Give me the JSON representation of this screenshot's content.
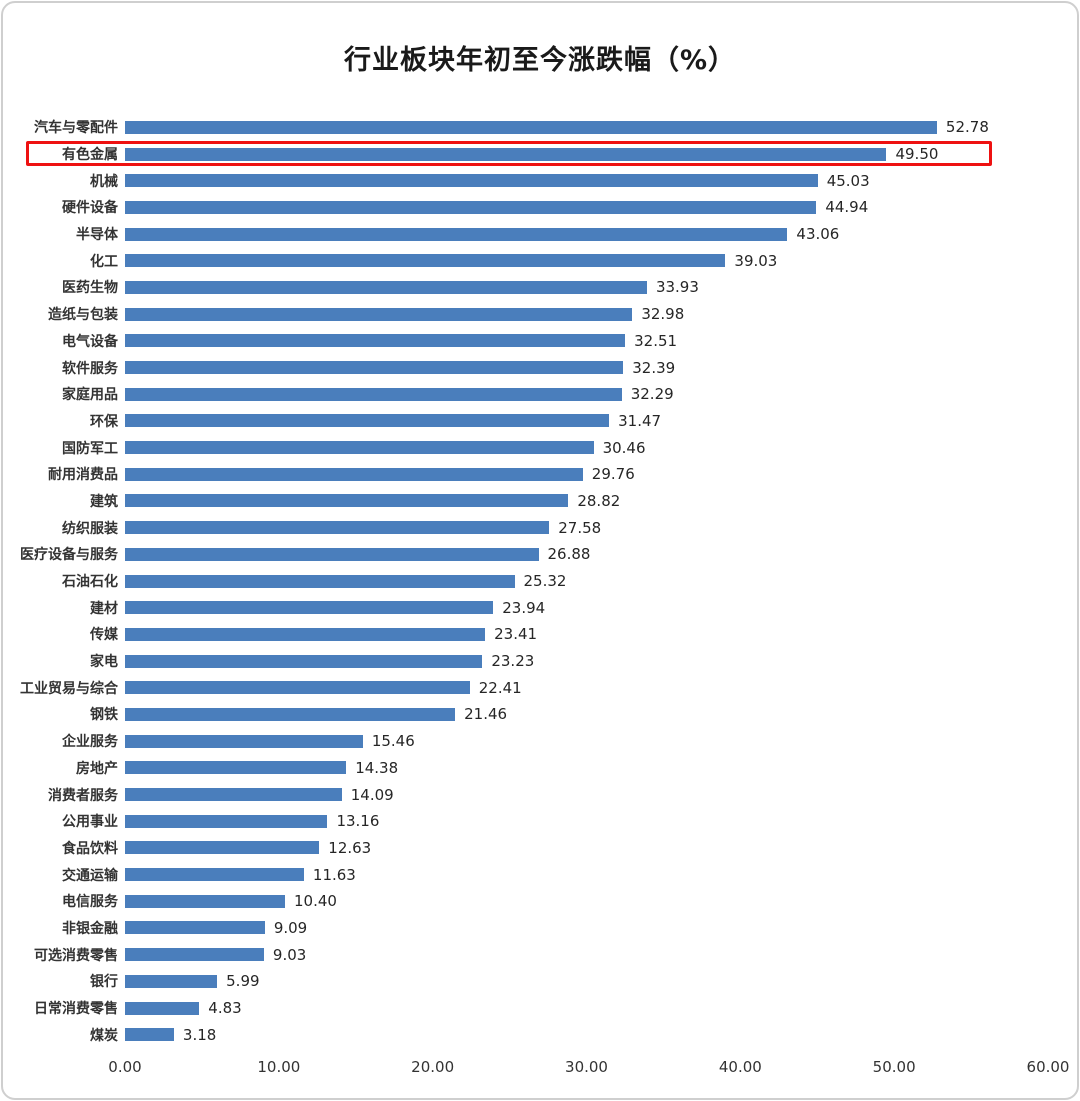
{
  "title": "行业板块年初至今涨跌幅（%）",
  "chart_data": {
    "type": "bar",
    "orientation": "horizontal",
    "title": "行业板块年初至今涨跌幅（%）",
    "xlabel": "",
    "ylabel": "",
    "xlim": [
      0,
      60
    ],
    "grid": false,
    "legend": false,
    "x_ticks": [
      "0.00",
      "10.00",
      "20.00",
      "30.00",
      "40.00",
      "50.00",
      "60.00"
    ],
    "bar_color": "#4a7ebc",
    "highlight_color": "#ee1111",
    "highlighted_category": "有色金属",
    "categories": [
      "汽车与零配件",
      "有色金属",
      "机械",
      "硬件设备",
      "半导体",
      "化工",
      "医药生物",
      "造纸与包装",
      "电气设备",
      "软件服务",
      "家庭用品",
      "环保",
      "国防军工",
      "耐用消费品",
      "建筑",
      "纺织服装",
      "医疗设备与服务",
      "石油石化",
      "建材",
      "传媒",
      "家电",
      "工业贸易与综合",
      "钢铁",
      "企业服务",
      "房地产",
      "消费者服务",
      "公用事业",
      "食品饮料",
      "交通运输",
      "电信服务",
      "非银金融",
      "可选消费零售",
      "银行",
      "日常消费零售",
      "煤炭"
    ],
    "values": [
      52.78,
      49.5,
      45.03,
      44.94,
      43.06,
      39.03,
      33.93,
      32.98,
      32.51,
      32.39,
      32.29,
      31.47,
      30.46,
      29.76,
      28.82,
      27.58,
      26.88,
      25.32,
      23.94,
      23.41,
      23.23,
      22.41,
      21.46,
      15.46,
      14.38,
      14.09,
      13.16,
      12.63,
      11.63,
      10.4,
      9.09,
      9.03,
      5.99,
      4.83,
      3.18
    ]
  }
}
